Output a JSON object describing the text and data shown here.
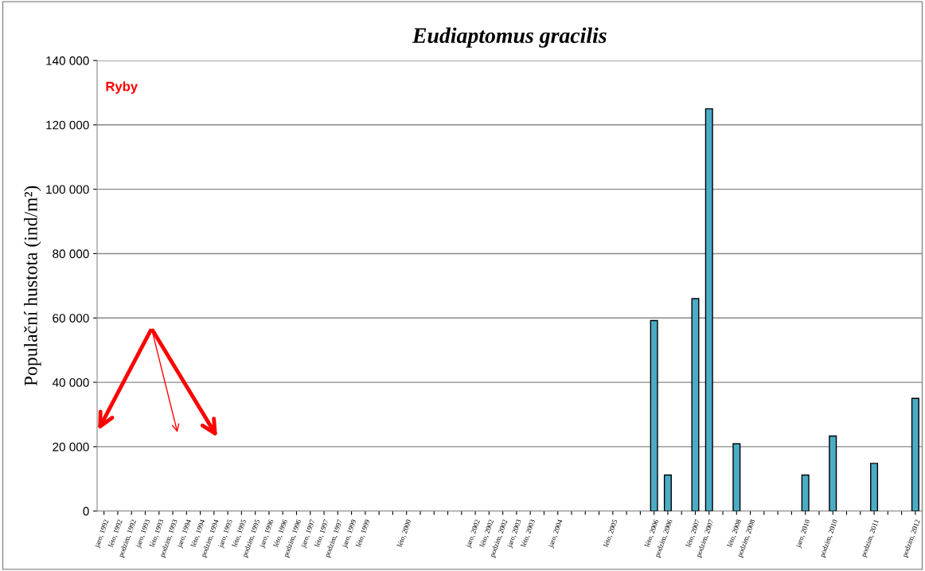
{
  "chart_data": {
    "type": "bar",
    "title": "Eudiaptomus gracilis",
    "ylabel": "Populační hustota (ind/m²)",
    "categories": [
      "jaro, 1992",
      "léto, 1992",
      "podzim, 1992",
      "jaro, 1993",
      "léto, 1993",
      "podzim, 1993",
      "jaro, 1994",
      "léto, 1994",
      "podzim, 1994",
      "jaro, 1995",
      "léto, 1995",
      "podzim, 1995",
      "jaro, 1996",
      "léto, 1996",
      "podzim, 1996",
      "jaro, 1997",
      "léto, 1997",
      "podzim, 1997",
      "jaro, 1999",
      "léto, 1999",
      null,
      null,
      "léto, 2000",
      null,
      null,
      null,
      null,
      "jaro, 2002",
      "léto, 2002",
      "podzim, 2002",
      "jaro, 2003",
      "léto, 2003",
      null,
      "jaro, 2004",
      null,
      null,
      null,
      "léto, 2005",
      null,
      null,
      "léto, 2006",
      "podzim, 2006",
      null,
      "léto, 2007",
      "podzim, 2007",
      null,
      "léto, 2008",
      "podzim, 2008",
      null,
      null,
      null,
      "jaro, 2010",
      null,
      "podzim, 2010",
      null,
      null,
      "podzim, 2011",
      null,
      null,
      "podzim, 2012"
    ],
    "values": [
      null,
      null,
      null,
      null,
      null,
      null,
      null,
      null,
      null,
      null,
      null,
      null,
      null,
      null,
      null,
      null,
      null,
      null,
      null,
      null,
      null,
      null,
      null,
      null,
      null,
      null,
      null,
      null,
      null,
      null,
      null,
      null,
      null,
      null,
      null,
      null,
      null,
      null,
      null,
      null,
      59200,
      11200,
      null,
      66000,
      125000,
      null,
      20900,
      null,
      null,
      null,
      null,
      11200,
      null,
      23300,
      null,
      null,
      14800,
      null,
      null,
      35000
    ],
    "color": "#4bacc6",
    "ylim": [
      0,
      140000
    ],
    "yticks": [
      {
        "value": 0,
        "label": "0"
      },
      {
        "value": 20000,
        "label": "20 000"
      },
      {
        "value": 40000,
        "label": "40 000"
      },
      {
        "value": 60000,
        "label": "60 000"
      },
      {
        "value": 80000,
        "label": "80 000"
      },
      {
        "value": 100000,
        "label": "100 000"
      },
      {
        "value": 120000,
        "label": "120 000"
      },
      {
        "value": 140000,
        "label": "140 000"
      }
    ],
    "grid": "y",
    "annotations": [
      "Ryby"
    ]
  }
}
